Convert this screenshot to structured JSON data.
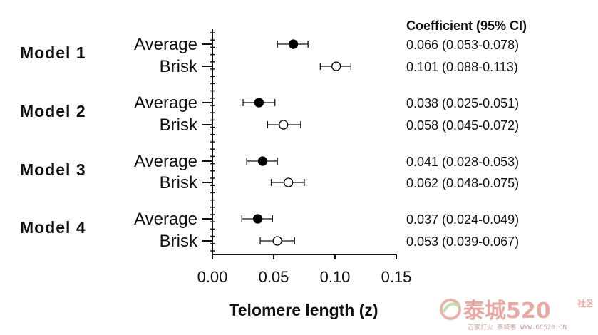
{
  "chart_data": {
    "type": "forest",
    "xlabel": "Telomere length (z)",
    "xlim": [
      0.0,
      0.15
    ],
    "xticks": [
      "0.00",
      "0.05",
      "0.10",
      "0.15"
    ],
    "coefficient_header": "Coefficient (95% CI)",
    "legend": "none",
    "grid": false,
    "groups": [
      {
        "name": "Model 1",
        "rows": [
          {
            "label": "Average",
            "estimate": 0.066,
            "lower": 0.053,
            "upper": 0.078,
            "marker": "filled",
            "ci_text": "0.066 (0.053-0.078)"
          },
          {
            "label": "Brisk",
            "estimate": 0.101,
            "lower": 0.088,
            "upper": 0.113,
            "marker": "open",
            "ci_text": "0.101 (0.088-0.113)"
          }
        ]
      },
      {
        "name": "Model 2",
        "rows": [
          {
            "label": "Average",
            "estimate": 0.038,
            "lower": 0.025,
            "upper": 0.051,
            "marker": "filled",
            "ci_text": "0.038 (0.025-0.051)"
          },
          {
            "label": "Brisk",
            "estimate": 0.058,
            "lower": 0.045,
            "upper": 0.072,
            "marker": "open",
            "ci_text": "0.058 (0.045-0.072)"
          }
        ]
      },
      {
        "name": "Model 3",
        "rows": [
          {
            "label": "Average",
            "estimate": 0.041,
            "lower": 0.028,
            "upper": 0.053,
            "marker": "filled",
            "ci_text": "0.041 (0.028-0.053)"
          },
          {
            "label": "Brisk",
            "estimate": 0.062,
            "lower": 0.048,
            "upper": 0.075,
            "marker": "open",
            "ci_text": "0.062 (0.048-0.075)"
          }
        ]
      },
      {
        "name": "Model 4",
        "rows": [
          {
            "label": "Average",
            "estimate": 0.037,
            "lower": 0.024,
            "upper": 0.049,
            "marker": "filled",
            "ci_text": "0.037 (0.024-0.049)"
          },
          {
            "label": "Brisk",
            "estimate": 0.053,
            "lower": 0.039,
            "upper": 0.067,
            "marker": "open",
            "ci_text": "0.053 (0.039-0.067)"
          }
        ]
      }
    ]
  },
  "watermark": {
    "text": "泰城520",
    "side": "社区",
    "sub": "万家灯火 泰城事 WWW.GC520.CN"
  }
}
